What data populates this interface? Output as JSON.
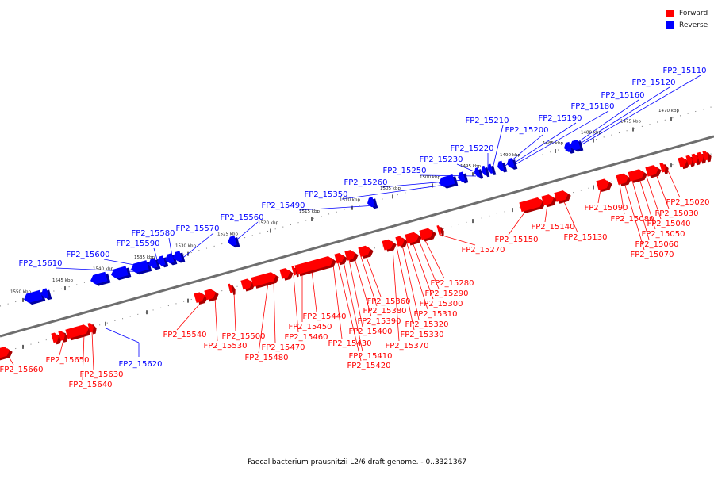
{
  "colors": {
    "forward": "#ff0000",
    "reverse": "#0000ff",
    "backbone": "#6e6e6e",
    "tick": "#333333"
  },
  "legend": [
    {
      "label": "Forward",
      "color": "#ff0000"
    },
    {
      "label": "Reverse",
      "color": "#0000ff"
    }
  ],
  "caption": "Faecalibacterium prausnitzii L2/6 draft genome. - 0..3321367",
  "scale_labels": [
    "1470 kbp",
    "1475 kbp",
    "1480 kbp",
    "1485 kbp",
    "1490 kbp",
    "1495 kbp",
    "1500 kbp",
    "1505 kbp",
    "1510 kbp",
    "1515 kbp",
    "1520 kbp",
    "1525 kbp",
    "1530 kbp",
    "1535 kbp",
    "1540 kbp",
    "1545 kbp",
    "1550 kbp"
  ],
  "reverse_genes": [
    "FP2_15110",
    "FP2_15120",
    "FP2_15160",
    "FP2_15180",
    "FP2_15190",
    "FP2_15200",
    "FP2_15210",
    "FP2_15220",
    "FP2_15230",
    "FP2_15250",
    "FP2_15260",
    "FP2_15350",
    "FP2_15490",
    "FP2_15560",
    "FP2_15570",
    "FP2_15580",
    "FP2_15590",
    "FP2_15600",
    "FP2_15610",
    "FP2_15620"
  ],
  "forward_genes": [
    "FP2_15020",
    "FP2_15030",
    "FP2_15040",
    "FP2_15050",
    "FP2_15060",
    "FP2_15070",
    "FP2_15080",
    "FP2_15090",
    "FP2_15130",
    "FP2_15140",
    "FP2_15150",
    "FP2_15270",
    "FP2_15280",
    "FP2_15290",
    "FP2_15300",
    "FP2_15310",
    "FP2_15320",
    "FP2_15330",
    "FP2_15360",
    "FP2_15370",
    "FP2_15380",
    "FP2_15390",
    "FP2_15400",
    "FP2_15410",
    "FP2_15420",
    "FP2_15430",
    "FP2_15440",
    "FP2_15450",
    "FP2_15460",
    "FP2_15470",
    "FP2_15480",
    "FP2_15500",
    "FP2_15530",
    "FP2_15540",
    "FP2_15630",
    "FP2_15640",
    "FP2_15650",
    "FP2_15660"
  ]
}
